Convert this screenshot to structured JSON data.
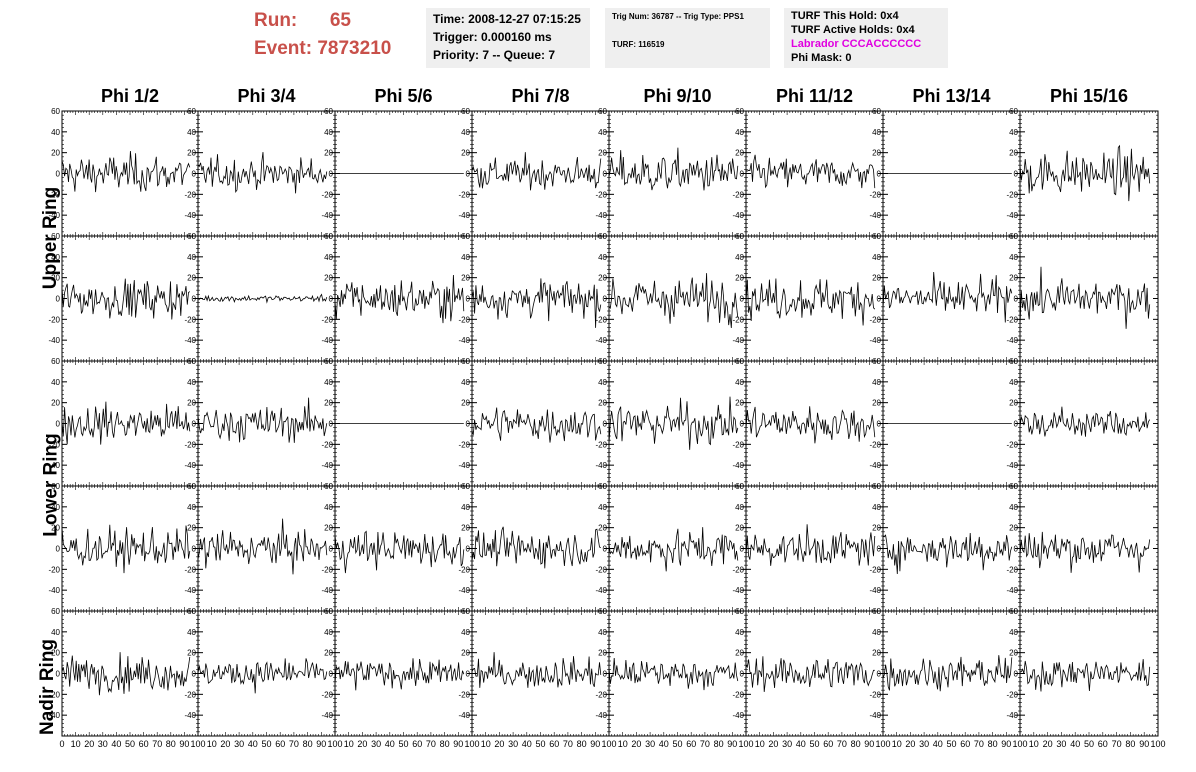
{
  "header": {
    "run_label": "Run:",
    "run_value": "65",
    "event_label": "Event:",
    "event_value": "7873210"
  },
  "info_time": {
    "time": "Time: 2008-12-27 07:15:25",
    "trigger": "Trigger: 0.000160 ms",
    "priority": "Priority: 7 -- Queue: 7"
  },
  "info_trig": {
    "trig": "Trig Num: 36787 -- Trig Type: PPS1",
    "turf": "TURF: 116519"
  },
  "info_turf": {
    "this_hold": "TURF This Hold: 0x4",
    "active_holds": "TURF Active Holds: 0x4",
    "labrador": "Labrador CCCACCCCCC",
    "phi_mask": "Phi Mask: 0"
  },
  "colors": {
    "run_text": "#c8504a",
    "labrador_text": "#e000e0",
    "info_bg": "#efefef",
    "trace": "#000000"
  },
  "column_titles": [
    "Phi 1/2",
    "Phi 3/4",
    "Phi 5/6",
    "Phi 7/8",
    "Phi 9/10",
    "Phi 11/12",
    "Phi 13/14",
    "Phi 15/16"
  ],
  "row_titles": [
    "Upper Ring",
    "Lower Ring",
    "Nadir Ring"
  ],
  "chart_data": {
    "type": "line",
    "description": "5 x 8 grid of waveform panels",
    "xlim": [
      0,
      100
    ],
    "ylim": [
      -60,
      60
    ],
    "x_ticks": [
      0,
      10,
      20,
      30,
      40,
      50,
      60,
      70,
      80,
      90,
      100
    ],
    "y_ticks": [
      -40,
      -20,
      0,
      20,
      40,
      60
    ],
    "samples_per_trace": 100,
    "trace_amplitude_rows": [
      [
        12,
        10,
        0,
        10,
        13,
        10,
        0,
        14
      ],
      [
        12,
        2,
        13,
        12,
        14,
        13,
        12,
        13
      ],
      [
        12,
        11,
        0,
        12,
        13,
        12,
        0,
        10
      ],
      [
        12,
        12,
        12,
        11,
        12,
        11,
        12,
        12
      ],
      [
        11,
        9,
        9,
        10,
        9,
        11,
        10,
        10
      ]
    ]
  }
}
